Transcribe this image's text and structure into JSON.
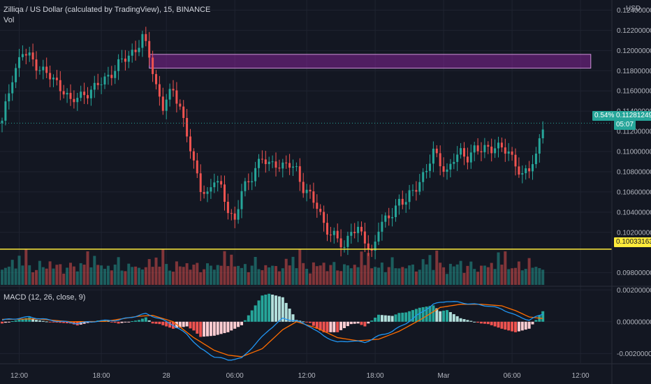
{
  "header": {
    "symbol_line": "Zilliqa / US Dollar (calculated by TradingView), 15, BINANCE",
    "volume_label": "Vol",
    "currency": "USD"
  },
  "price_axis": {
    "ticks": [
      "0.12400000",
      "0.12200000",
      "0.12000000",
      "0.11800000",
      "0.11600000",
      "0.11400000",
      "0.11200000",
      "0.11000000",
      "0.10800000",
      "0.10600000",
      "0.10400000",
      "0.10200000",
      "0.09800000"
    ],
    "tick_values": [
      0.124,
      0.122,
      0.12,
      0.118,
      0.116,
      0.114,
      0.112,
      0.11,
      0.108,
      0.106,
      0.104,
      0.102,
      0.098
    ],
    "range": [
      0.0968,
      0.125
    ]
  },
  "last_price": {
    "change_label": "0.54%",
    "value_label": "0.11281249",
    "countdown_label": "05:07",
    "value": 0.11281249,
    "color": "#26a69a"
  },
  "horizontal_line": {
    "value_label": "0.10033163",
    "value": 0.10033163,
    "color": "#ffeb3b"
  },
  "rectangle_zone": {
    "price_top": 0.11962,
    "price_bottom": 0.11825,
    "bar_start": 43,
    "bar_end": 172,
    "color": "#9c27b0"
  },
  "macd": {
    "label": "MACD (12, 26, close, 9)",
    "ticks": [
      "0.00200000",
      "0.00000000",
      "-0.00200000"
    ],
    "tick_values": [
      0.002,
      0.0,
      -0.002
    ],
    "range": [
      -0.0026,
      0.0021
    ],
    "macd_color": "#2196f3",
    "signal_color": "#ff6d00"
  },
  "time_axis": {
    "labels": [
      "12:00",
      "18:00",
      "28",
      "06:00",
      "12:00",
      "18:00",
      "Mar",
      "06:00",
      "12:00"
    ],
    "label_bars": [
      5,
      29,
      48,
      68,
      89,
      109,
      129,
      149,
      169
    ]
  },
  "chart_data": {
    "type": "candlestick",
    "title": "Zilliqa / US Dollar (calculated by TradingView), 15, BINANCE",
    "interval_minutes": 15,
    "up_color": "#26a69a",
    "down_color": "#ef5350",
    "anchors_close": [
      [
        0,
        0.1128
      ],
      [
        3,
        0.1175
      ],
      [
        6,
        0.1198
      ],
      [
        9,
        0.119
      ],
      [
        12,
        0.118
      ],
      [
        15,
        0.117
      ],
      [
        18,
        0.1162
      ],
      [
        20,
        0.1148
      ],
      [
        24,
        0.1158
      ],
      [
        27,
        0.1162
      ],
      [
        30,
        0.1172
      ],
      [
        33,
        0.1182
      ],
      [
        36,
        0.1192
      ],
      [
        39,
        0.1202
      ],
      [
        41,
        0.1212
      ],
      [
        43,
        0.1195
      ],
      [
        45,
        0.1165
      ],
      [
        47,
        0.1145
      ],
      [
        50,
        0.116
      ],
      [
        52,
        0.1145
      ],
      [
        54,
        0.1118
      ],
      [
        56,
        0.1085
      ],
      [
        58,
        0.1065
      ],
      [
        60,
        0.1058
      ],
      [
        62,
        0.1072
      ],
      [
        64,
        0.1062
      ],
      [
        66,
        0.1045
      ],
      [
        68,
        0.103
      ],
      [
        70,
        0.106
      ],
      [
        72,
        0.107
      ],
      [
        74,
        0.1085
      ],
      [
        76,
        0.1092
      ],
      [
        78,
        0.1086
      ],
      [
        80,
        0.109
      ],
      [
        82,
        0.1085
      ],
      [
        84,
        0.1086
      ],
      [
        86,
        0.1082
      ],
      [
        88,
        0.1065
      ],
      [
        90,
        0.1055
      ],
      [
        92,
        0.1045
      ],
      [
        94,
        0.103
      ],
      [
        96,
        0.1018
      ],
      [
        98,
        0.1012
      ],
      [
        100,
        0.1005
      ],
      [
        102,
        0.1025
      ],
      [
        104,
        0.102
      ],
      [
        106,
        0.1012
      ],
      [
        108,
        0.1
      ],
      [
        110,
        0.1025
      ],
      [
        112,
        0.103
      ],
      [
        114,
        0.104
      ],
      [
        116,
        0.1052
      ],
      [
        118,
        0.105
      ],
      [
        120,
        0.106
      ],
      [
        122,
        0.1072
      ],
      [
        124,
        0.1082
      ],
      [
        126,
        0.1098
      ],
      [
        128,
        0.109
      ],
      [
        130,
        0.108
      ],
      [
        132,
        0.1092
      ],
      [
        134,
        0.1098
      ],
      [
        136,
        0.1096
      ],
      [
        138,
        0.1102
      ],
      [
        140,
        0.11
      ],
      [
        142,
        0.1104
      ],
      [
        144,
        0.1106
      ],
      [
        146,
        0.1102
      ],
      [
        148,
        0.1098
      ],
      [
        150,
        0.109
      ],
      [
        152,
        0.1075
      ],
      [
        154,
        0.1082
      ],
      [
        156,
        0.1095
      ],
      [
        157,
        0.1115
      ],
      [
        158,
        0.1128
      ]
    ],
    "volume_pattern": [
      0.25,
      0.18,
      0.15,
      0.35,
      0.22,
      0.55,
      0.2,
      0.6,
      0.25,
      0.18,
      0.12,
      0.3,
      0.16,
      0.22,
      0.4,
      0.12,
      0.2,
      0.28,
      0.14,
      0.18
    ],
    "macd_anchors": [
      [
        0,
        0.0001
      ],
      [
        8,
        0.0003
      ],
      [
        14,
        0.0001
      ],
      [
        22,
        -0.0001
      ],
      [
        28,
        5e-05
      ],
      [
        34,
        0.0001
      ],
      [
        38,
        0.0003
      ],
      [
        42,
        0.0005
      ],
      [
        46,
        0.0002
      ],
      [
        50,
        -0.0002
      ],
      [
        54,
        -0.0008
      ],
      [
        58,
        -0.0017
      ],
      [
        62,
        -0.0022
      ],
      [
        66,
        -0.0024
      ],
      [
        70,
        -0.0023
      ],
      [
        74,
        -0.0014
      ],
      [
        78,
        -0.0005
      ],
      [
        82,
        0.0002
      ],
      [
        86,
        5e-05
      ],
      [
        90,
        -0.0003
      ],
      [
        94,
        -0.0009
      ],
      [
        98,
        -0.0013
      ],
      [
        102,
        -0.0012
      ],
      [
        106,
        -0.0013
      ],
      [
        110,
        -0.0009
      ],
      [
        114,
        -0.0006
      ],
      [
        118,
        -0.0001
      ],
      [
        122,
        0.0005
      ],
      [
        126,
        0.0011
      ],
      [
        130,
        0.0013
      ],
      [
        134,
        0.0012
      ],
      [
        138,
        0.0011
      ],
      [
        142,
        0.001
      ],
      [
        146,
        0.0008
      ],
      [
        150,
        0.0004
      ],
      [
        154,
        0.0001
      ],
      [
        158,
        0.0005
      ]
    ],
    "signal_anchors": [
      [
        0,
        0.00015
      ],
      [
        10,
        0.00018
      ],
      [
        20,
        0.0
      ],
      [
        30,
        2e-05
      ],
      [
        40,
        0.00035
      ],
      [
        44,
        0.0004
      ],
      [
        50,
        0.0
      ],
      [
        56,
        -0.001
      ],
      [
        62,
        -0.0018
      ],
      [
        66,
        -0.0021
      ],
      [
        70,
        -0.0022
      ],
      [
        76,
        -0.0017
      ],
      [
        82,
        -0.0005
      ],
      [
        86,
        0.0
      ],
      [
        92,
        -0.0004
      ],
      [
        98,
        -0.001
      ],
      [
        104,
        -0.0012
      ],
      [
        110,
        -0.0011
      ],
      [
        116,
        -0.0006
      ],
      [
        122,
        0.0001
      ],
      [
        128,
        0.0009
      ],
      [
        134,
        0.0011
      ],
      [
        140,
        0.0011
      ],
      [
        146,
        0.001
      ],
      [
        150,
        0.0007
      ],
      [
        154,
        0.0003
      ],
      [
        158,
        0.0002
      ]
    ],
    "bar_count": 159,
    "price_range": [
      0.0968,
      0.125
    ]
  }
}
